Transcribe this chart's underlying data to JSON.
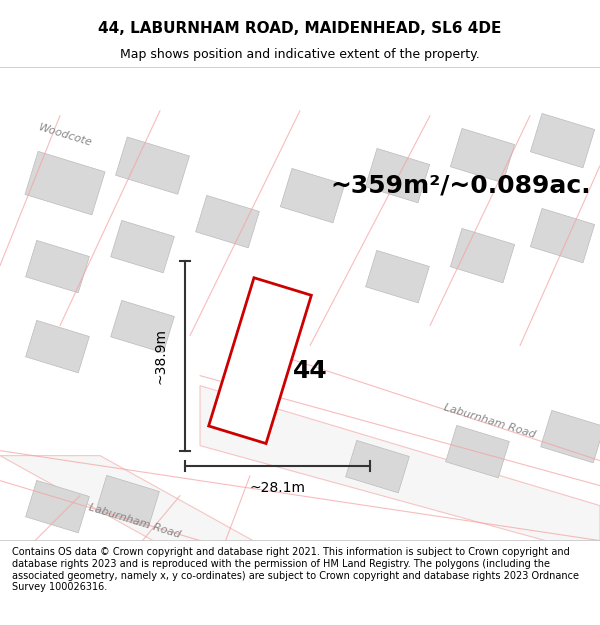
{
  "title": "44, LABURNHAM ROAD, MAIDENHEAD, SL6 4DE",
  "subtitle": "Map shows position and indicative extent of the property.",
  "area_text": "~359m²/~0.089ac.",
  "number_label": "44",
  "width_label": "~28.1m",
  "height_label": "~38.9m",
  "footer": "Contains OS data © Crown copyright and database right 2021. This information is subject to Crown copyright and database rights 2023 and is reproduced with the permission of HM Land Registry. The polygons (including the associated geometry, namely x, y co-ordinates) are subject to Crown copyright and database rights 2023 Ordnance Survey 100026316.",
  "bg_color": "#ffffff",
  "map_bg": "#f5f5f5",
  "road_fill": "#e8e8e8",
  "road_stroke": "#c8c8c8",
  "plot_stroke": "#cc0000",
  "plot_fill": "#ffffff",
  "pink_road_color": "#f5a0a0",
  "title_fontsize": 11,
  "subtitle_fontsize": 9,
  "area_fontsize": 18,
  "number_fontsize": 18,
  "dim_fontsize": 10,
  "footer_fontsize": 7
}
